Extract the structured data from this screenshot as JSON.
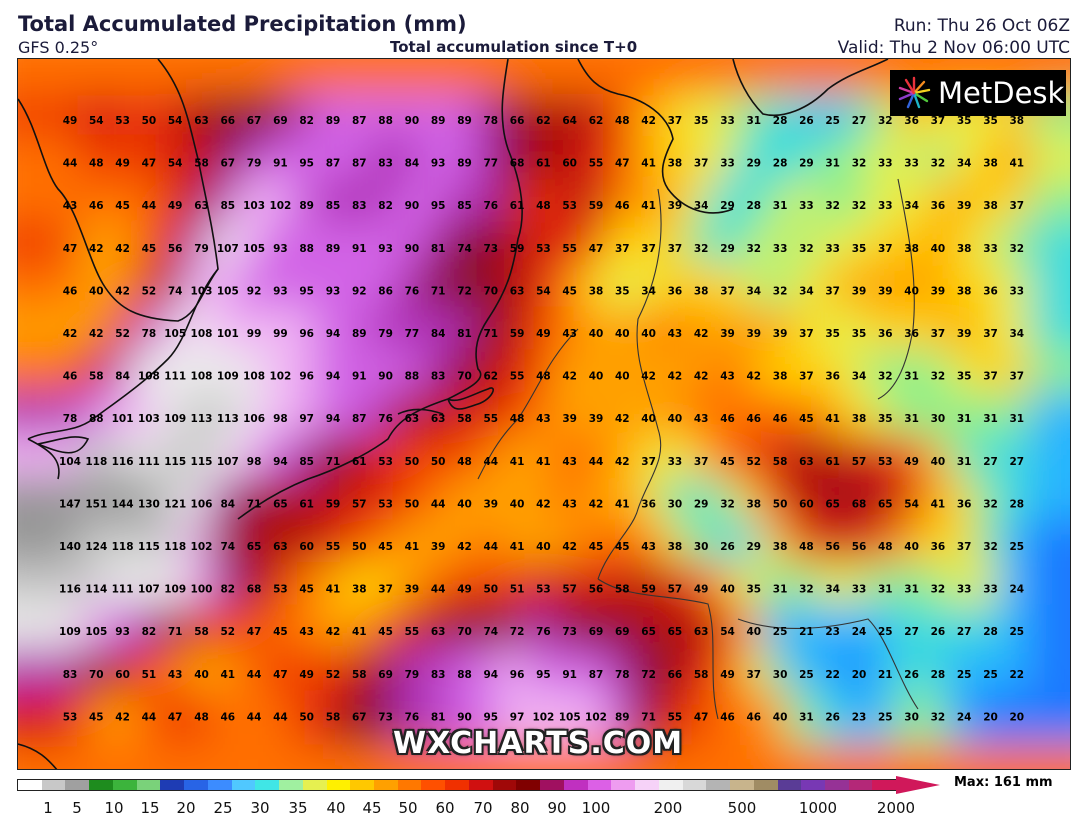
{
  "header": {
    "title": "Total Accumulated Precipitation (mm)",
    "model": "GFS 0.25°",
    "center_subtitle": "Total accumulation since T+0",
    "run": "Run: Thu 26 Oct 06Z",
    "valid": "Valid: Thu 2 Nov 06:00 UTC"
  },
  "logo": {
    "text": "MetDesk",
    "icon": "metdesk-starburst-icon"
  },
  "watermark": "WXCHARTS.COM",
  "legend": {
    "max_label": "Max: 161 mm",
    "ticks": [
      "1",
      "5",
      "10",
      "15",
      "20",
      "25",
      "30",
      "35",
      "40",
      "45",
      "50",
      "60",
      "70",
      "80",
      "90",
      "100",
      "200",
      "500",
      "1000",
      "2000"
    ]
  },
  "grid_values": [
    [
      49,
      54,
      53,
      50,
      54,
      63,
      66,
      67,
      69,
      82,
      89,
      87,
      88,
      90,
      89,
      89,
      78,
      66,
      62,
      64,
      62,
      48,
      42,
      37,
      35,
      33,
      31,
      28,
      26,
      25,
      27,
      32,
      36,
      37,
      35,
      35,
      38
    ],
    [
      44,
      48,
      49,
      47,
      54,
      58,
      67,
      79,
      91,
      95,
      87,
      87,
      83,
      84,
      93,
      89,
      77,
      68,
      61,
      60,
      55,
      47,
      41,
      38,
      37,
      33,
      29,
      28,
      29,
      31,
      32,
      33,
      33,
      32,
      34,
      38,
      41
    ],
    [
      43,
      46,
      45,
      44,
      49,
      63,
      85,
      103,
      102,
      89,
      85,
      83,
      82,
      90,
      95,
      85,
      76,
      61,
      48,
      53,
      59,
      46,
      41,
      39,
      34,
      29,
      28,
      31,
      33,
      32,
      32,
      33,
      34,
      36,
      39,
      38,
      37
    ],
    [
      47,
      42,
      42,
      45,
      56,
      79,
      107,
      105,
      93,
      88,
      89,
      91,
      93,
      90,
      81,
      74,
      73,
      59,
      53,
      55,
      47,
      37,
      37,
      37,
      32,
      29,
      32,
      33,
      32,
      33,
      35,
      37,
      38,
      40,
      38,
      33,
      32
    ],
    [
      46,
      40,
      42,
      52,
      74,
      103,
      105,
      92,
      93,
      95,
      93,
      92,
      86,
      76,
      71,
      72,
      70,
      63,
      54,
      45,
      38,
      35,
      34,
      36,
      38,
      37,
      34,
      32,
      34,
      37,
      39,
      39,
      40,
      39,
      38,
      36,
      33
    ],
    [
      42,
      42,
      52,
      78,
      105,
      108,
      101,
      99,
      99,
      96,
      94,
      89,
      79,
      77,
      84,
      81,
      71,
      59,
      49,
      43,
      40,
      40,
      40,
      43,
      42,
      39,
      39,
      39,
      37,
      35,
      35,
      36,
      36,
      37,
      39,
      37,
      34
    ],
    [
      46,
      58,
      84,
      108,
      111,
      108,
      109,
      108,
      102,
      96,
      94,
      91,
      90,
      88,
      83,
      70,
      62,
      55,
      48,
      42,
      40,
      40,
      42,
      42,
      42,
      43,
      42,
      38,
      37,
      36,
      34,
      32,
      31,
      32,
      35,
      37,
      37
    ],
    [
      78,
      88,
      101,
      103,
      109,
      113,
      113,
      106,
      98,
      97,
      94,
      87,
      76,
      63,
      63,
      58,
      55,
      48,
      43,
      39,
      39,
      42,
      40,
      40,
      43,
      46,
      46,
      46,
      45,
      41,
      38,
      35,
      31,
      30,
      31,
      31,
      31
    ],
    [
      104,
      118,
      116,
      111,
      115,
      115,
      107,
      98,
      94,
      85,
      71,
      61,
      53,
      50,
      50,
      48,
      44,
      41,
      41,
      43,
      44,
      42,
      37,
      33,
      37,
      45,
      52,
      58,
      63,
      61,
      57,
      53,
      49,
      40,
      31,
      27,
      27
    ],
    [
      147,
      151,
      144,
      130,
      121,
      106,
      84,
      71,
      65,
      61,
      59,
      57,
      53,
      50,
      44,
      40,
      39,
      40,
      42,
      43,
      42,
      41,
      36,
      30,
      29,
      32,
      38,
      50,
      60,
      65,
      68,
      65,
      54,
      41,
      36,
      32,
      28
    ],
    [
      140,
      124,
      118,
      115,
      118,
      102,
      74,
      65,
      63,
      60,
      55,
      50,
      45,
      41,
      39,
      42,
      44,
      41,
      40,
      42,
      45,
      45,
      43,
      38,
      30,
      26,
      29,
      38,
      48,
      56,
      56,
      48,
      40,
      36,
      37,
      32,
      25
    ],
    [
      116,
      114,
      111,
      107,
      109,
      100,
      82,
      68,
      53,
      45,
      41,
      38,
      37,
      39,
      44,
      49,
      50,
      51,
      53,
      57,
      56,
      58,
      59,
      57,
      49,
      40,
      35,
      31,
      32,
      34,
      33,
      31,
      31,
      32,
      33,
      33,
      24
    ],
    [
      109,
      105,
      93,
      82,
      71,
      58,
      52,
      47,
      45,
      43,
      42,
      41,
      45,
      55,
      63,
      70,
      74,
      72,
      76,
      73,
      69,
      69,
      65,
      65,
      63,
      54,
      40,
      25,
      21,
      23,
      24,
      25,
      27,
      26,
      27,
      28,
      25
    ],
    [
      83,
      70,
      60,
      51,
      43,
      40,
      41,
      44,
      47,
      49,
      52,
      58,
      69,
      79,
      83,
      88,
      94,
      96,
      95,
      91,
      87,
      78,
      72,
      66,
      58,
      49,
      37,
      30,
      25,
      22,
      20,
      21,
      26,
      28,
      25,
      25,
      22
    ],
    [
      53,
      45,
      42,
      44,
      47,
      48,
      46,
      44,
      44,
      50,
      58,
      67,
      73,
      76,
      81,
      90,
      95,
      97,
      102,
      105,
      102,
      89,
      71,
      55,
      47,
      46,
      46,
      40,
      31,
      26,
      23,
      25,
      30,
      32,
      24,
      20,
      20
    ]
  ],
  "colors": {
    "scale": [
      "#ffffff",
      "#c8c8c8",
      "#a0a0a0",
      "#1e8c1e",
      "#3cb43c",
      "#7ad27a",
      "#1e3cb4",
      "#2864e6",
      "#3c8cff",
      "#50c8ff",
      "#40e6e6",
      "#a0f0a0",
      "#e6f050",
      "#fff000",
      "#ffc800",
      "#ffa000",
      "#ff7800",
      "#ff5000",
      "#f03000",
      "#d01010",
      "#a00808",
      "#800000",
      "#a01060",
      "#c030c0",
      "#dc60e6",
      "#ee9cf0",
      "#f6d2f8",
      "#f0f0f0",
      "#d8d8d8",
      "#b4b4b4",
      "#c8b48c",
      "#a08c64",
      "#5a3c96",
      "#7838b4",
      "#963296",
      "#b42878",
      "#d0185a"
    ],
    "max_arrow": "#d0185a"
  }
}
